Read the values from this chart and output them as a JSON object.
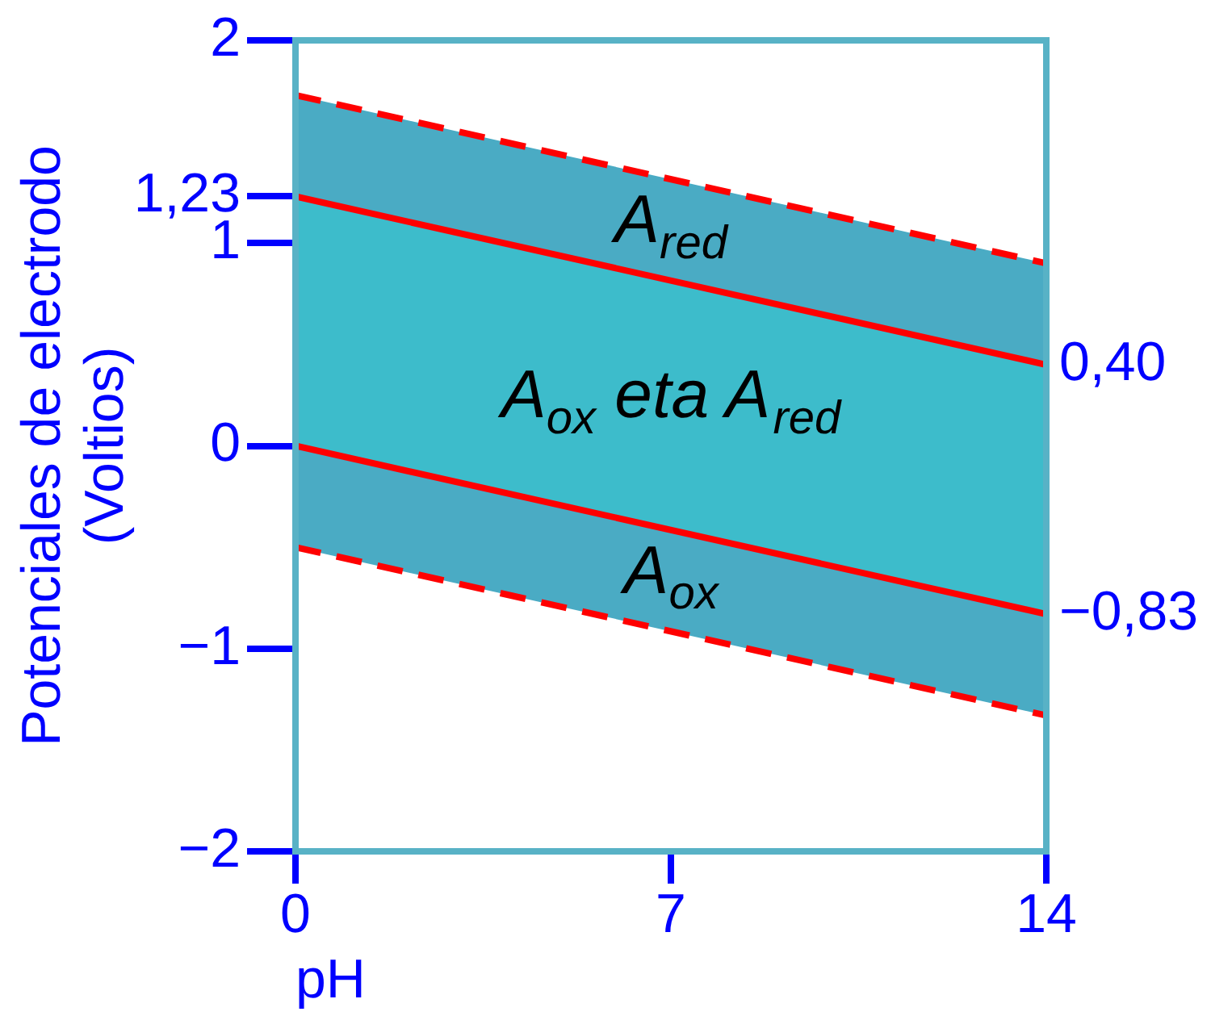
{
  "chart_data": {
    "type": "line",
    "xlabel": "pH",
    "ylabel": "Potenciales de electrodo (Voltios)",
    "xlim": [
      0,
      14
    ],
    "xticks": [
      0,
      7,
      14
    ],
    "ylim": [
      -2,
      2
    ],
    "yticks": [
      {
        "value": -2,
        "label": "−2"
      },
      {
        "value": -1,
        "label": "−1"
      },
      0,
      1,
      {
        "value": 1.23,
        "label": "1,23"
      },
      2
    ],
    "x": [
      0,
      14
    ],
    "series": [
      {
        "color": "#4aabc4",
        "values": [
          null,
          null
        ],
        "lower": [
          1.23,
          0.4
        ],
        "upper": [
          1.73,
          0.9
        ]
      },
      {
        "color": "#3dbccb",
        "values": [
          null,
          null
        ],
        "lower": [
          0,
          -0.83
        ],
        "upper": [
          1.23,
          0.4
        ]
      },
      {
        "color": "#4aabc4",
        "values": [
          null,
          null
        ],
        "lower": [
          -0.5,
          -1.33
        ],
        "upper": [
          0,
          -0.83
        ]
      },
      {
        "color": "#ff0000",
        "values": [
          1.73,
          0.9
        ],
        "line_style": "dashed"
      },
      {
        "color": "#ff0000",
        "values": [
          -0.5,
          -1.33
        ],
        "line_style": "dashed"
      },
      {
        "color": "#ff0000",
        "values": [
          1.23,
          0.4
        ],
        "line_style": "solid"
      },
      {
        "color": "#ff0000",
        "values": [
          0,
          -0.83
        ],
        "line_style": "solid"
      }
    ],
    "marker": "none",
    "annotations": [
      {
        "text": "0,40",
        "x": 14,
        "y": 0.4
      },
      {
        "text": "−0,83",
        "x": 14,
        "y": -0.83
      },
      "A$_{red}$",
      "A$_{ox}$ eta A$_{red}$",
      "A$_{ox}$"
    ]
  }
}
